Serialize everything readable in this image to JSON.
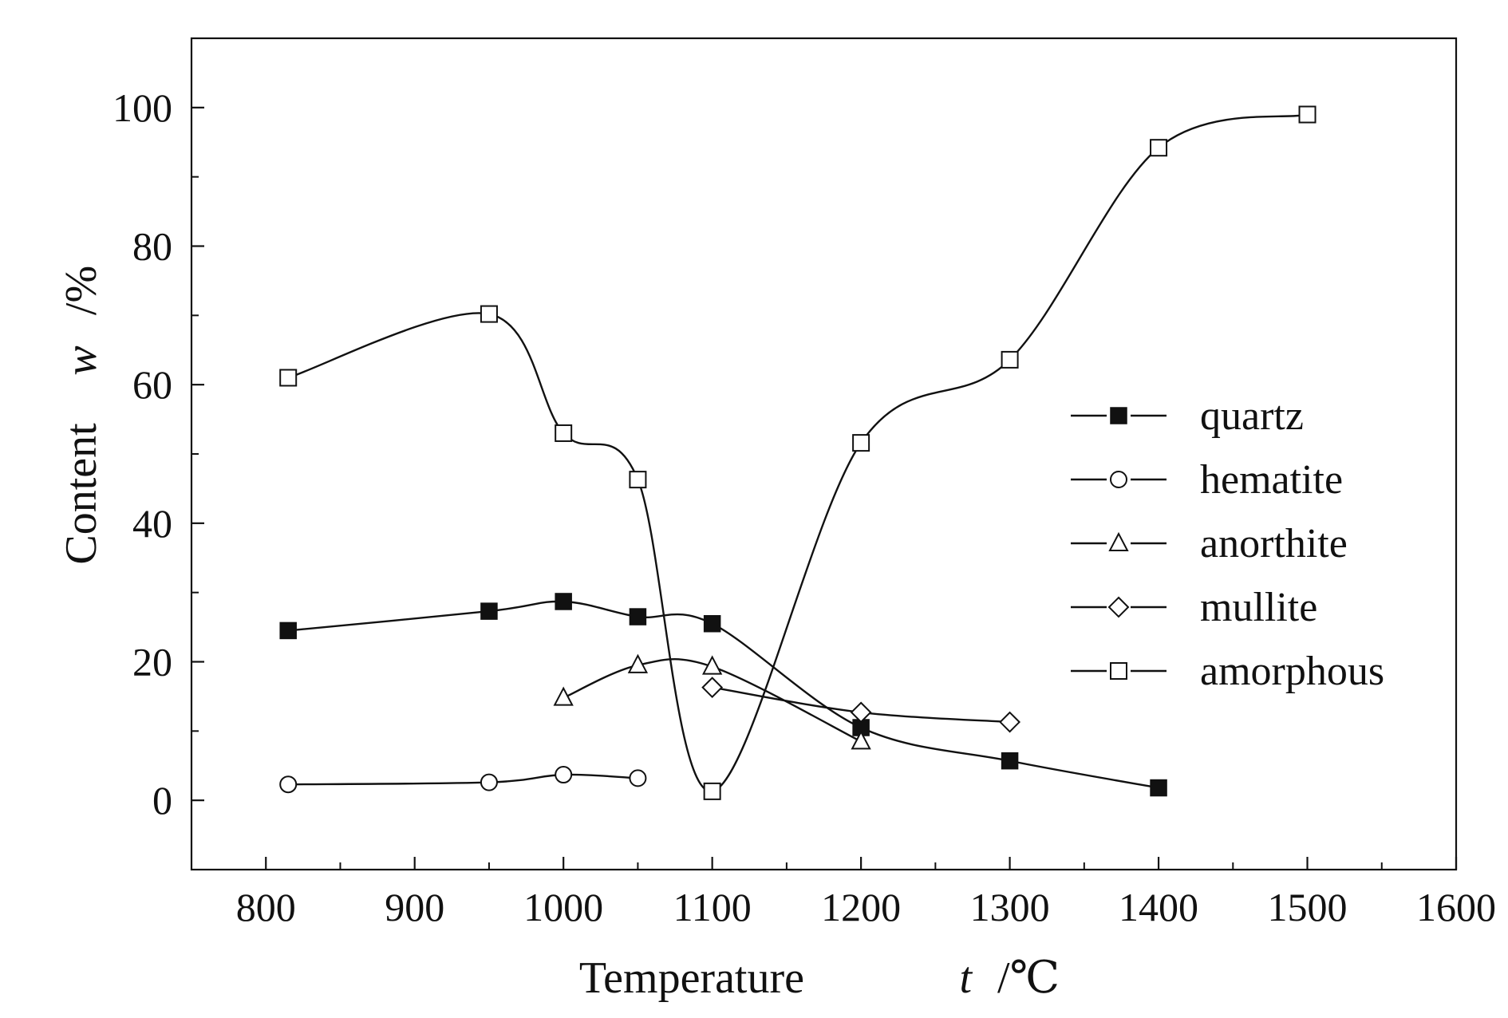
{
  "chart_data": {
    "type": "line",
    "xlabel": "Temperature",
    "xlabel_var": "t",
    "xlabel_unit": "/℃",
    "ylabel": "Content",
    "ylabel_var": "w",
    "ylabel_unit": "/%",
    "xlim": [
      750,
      1600
    ],
    "ylim": [
      -10,
      110
    ],
    "xticks": [
      800,
      900,
      1000,
      1100,
      1200,
      1300,
      1400,
      1500,
      1600
    ],
    "yticks": [
      0,
      20,
      40,
      60,
      80,
      100
    ],
    "xtick_labels": [
      "800",
      "900",
      "1000",
      "1100",
      "1200",
      "1300",
      "1400",
      "1500",
      "1600"
    ],
    "ytick_labels": [
      "0",
      "20",
      "40",
      "60",
      "80",
      "100"
    ],
    "grid": false,
    "legend_position": "right",
    "line_color": "#111111",
    "series": [
      {
        "name": "quartz",
        "marker": "filled-square",
        "x": [
          815,
          950,
          1000,
          1050,
          1100,
          1200,
          1300,
          1400
        ],
        "y": [
          24.5,
          27.3,
          28.7,
          26.5,
          25.5,
          10.5,
          5.7,
          1.8
        ]
      },
      {
        "name": "hematite",
        "marker": "open-circle",
        "x": [
          815,
          950,
          1000,
          1050
        ],
        "y": [
          2.3,
          2.6,
          3.7,
          3.2
        ]
      },
      {
        "name": "anorthite",
        "marker": "open-triangle",
        "x": [
          1000,
          1050,
          1100,
          1200
        ],
        "y": [
          14.8,
          19.5,
          19.3,
          8.5
        ]
      },
      {
        "name": "mullite",
        "marker": "open-diamond",
        "x": [
          1100,
          1200,
          1300
        ],
        "y": [
          16.3,
          12.7,
          11.3
        ]
      },
      {
        "name": "amorphous",
        "marker": "open-square",
        "x": [
          815,
          950,
          1000,
          1050,
          1100,
          1200,
          1300,
          1400,
          1500
        ],
        "y": [
          61.0,
          70.2,
          53.0,
          46.3,
          1.3,
          51.6,
          63.6,
          94.2,
          99.0
        ]
      }
    ]
  }
}
